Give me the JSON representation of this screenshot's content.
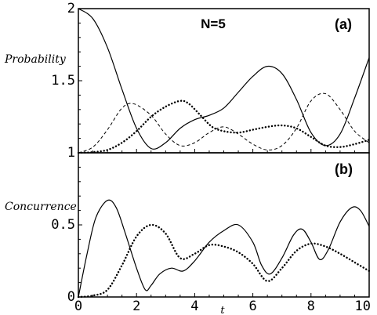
{
  "chart_data": [
    {
      "type": "line",
      "panel_label": "(a)",
      "title": "N=5",
      "ylabel": "Probability",
      "xlim": [
        0,
        10
      ],
      "ylim": [
        1,
        2
      ],
      "yticks": [
        {
          "v": 1,
          "label": "1"
        },
        {
          "v": 1.5,
          "label": "1.5"
        },
        {
          "v": 2,
          "label": "2"
        }
      ],
      "series": [
        {
          "style": "solid",
          "x": [
            0,
            0.5,
            1,
            1.5,
            2,
            2.5,
            3,
            3.5,
            4,
            4.5,
            5,
            5.5,
            6,
            6.5,
            7,
            7.5,
            8,
            8.5,
            9,
            9.5,
            10
          ],
          "y": [
            2.0,
            1.93,
            1.73,
            1.44,
            1.17,
            1.03,
            1.07,
            1.17,
            1.23,
            1.26,
            1.31,
            1.42,
            1.53,
            1.6,
            1.55,
            1.37,
            1.14,
            1.05,
            1.13,
            1.38,
            1.66
          ]
        },
        {
          "style": "dashed",
          "x": [
            0,
            0.5,
            1,
            1.5,
            1.9,
            2.5,
            3,
            3.5,
            4,
            4.5,
            5,
            5.5,
            6,
            6.5,
            7,
            7.5,
            8,
            8.5,
            9,
            9.5,
            10
          ],
          "y": [
            1.0,
            1.04,
            1.16,
            1.31,
            1.34,
            1.26,
            1.13,
            1.05,
            1.07,
            1.14,
            1.18,
            1.13,
            1.06,
            1.02,
            1.05,
            1.17,
            1.36,
            1.41,
            1.3,
            1.15,
            1.07
          ]
        },
        {
          "style": "dotted",
          "x": [
            0,
            0.5,
            1,
            1.5,
            2,
            2.5,
            3,
            3.5,
            3.8,
            4.2,
            4.6,
            5,
            5.5,
            6,
            6.5,
            7,
            7.5,
            8,
            8.5,
            9,
            9.5,
            10
          ],
          "y": [
            1.0,
            1.005,
            1.02,
            1.07,
            1.15,
            1.25,
            1.32,
            1.36,
            1.34,
            1.26,
            1.18,
            1.15,
            1.14,
            1.16,
            1.18,
            1.19,
            1.17,
            1.11,
            1.05,
            1.04,
            1.06,
            1.09
          ]
        }
      ]
    },
    {
      "type": "line",
      "panel_label": "(b)",
      "ylabel": "Concurrence",
      "xlabel": "t",
      "xlim": [
        0,
        10
      ],
      "ylim": [
        0,
        1
      ],
      "yticks": [
        {
          "v": 0,
          "label": "0"
        },
        {
          "v": 0.5,
          "label": "0.5"
        }
      ],
      "xticks": [
        {
          "v": 0,
          "label": "0"
        },
        {
          "v": 2,
          "label": "2"
        },
        {
          "v": 4,
          "label": "4"
        },
        {
          "v": 6,
          "label": "6"
        },
        {
          "v": 8,
          "label": "8"
        },
        {
          "v": 10,
          "label": "10"
        }
      ],
      "series": [
        {
          "style": "solid",
          "x": [
            0,
            0.3,
            0.6,
            1.0,
            1.3,
            1.6,
            2.0,
            2.3,
            2.5,
            2.8,
            3.2,
            3.6,
            4.0,
            4.5,
            5.0,
            5.5,
            6.0,
            6.3,
            6.6,
            7.0,
            7.4,
            7.7,
            8.0,
            8.3,
            8.6,
            9.0,
            9.4,
            9.7,
            10.0
          ],
          "y": [
            0.0,
            0.3,
            0.55,
            0.67,
            0.62,
            0.45,
            0.2,
            0.05,
            0.08,
            0.16,
            0.2,
            0.18,
            0.25,
            0.38,
            0.46,
            0.5,
            0.38,
            0.22,
            0.16,
            0.27,
            0.43,
            0.47,
            0.38,
            0.26,
            0.33,
            0.52,
            0.62,
            0.6,
            0.49
          ]
        },
        {
          "style": "dotted",
          "x": [
            0,
            0.5,
            1.0,
            1.5,
            2.0,
            2.5,
            3.0,
            3.5,
            4.0,
            4.5,
            5.0,
            5.5,
            6.0,
            6.5,
            7.0,
            7.5,
            8.0,
            8.5,
            9.0,
            9.5,
            10.0
          ],
          "y": [
            0.0,
            0.01,
            0.05,
            0.22,
            0.42,
            0.5,
            0.44,
            0.27,
            0.3,
            0.36,
            0.35,
            0.31,
            0.23,
            0.11,
            0.2,
            0.32,
            0.37,
            0.35,
            0.3,
            0.24,
            0.18
          ]
        }
      ]
    }
  ]
}
